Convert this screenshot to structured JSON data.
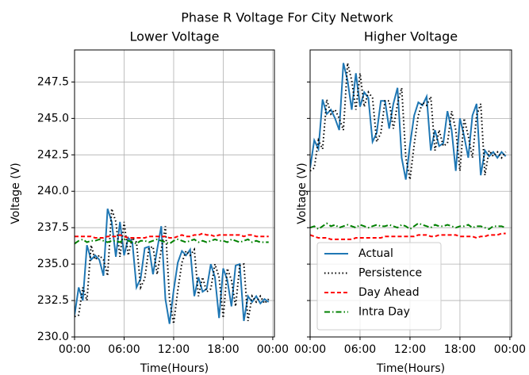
{
  "title": "Phase R Voltage For City Network",
  "chart_data": [
    {
      "type": "line",
      "title": "Lower Voltage",
      "xlabel": "Time(Hours)",
      "ylabel": "Voltage (V)",
      "x": [
        0,
        0.5,
        1,
        1.5,
        2,
        2.5,
        3,
        3.5,
        4,
        4.5,
        5,
        5.5,
        6,
        6.5,
        7,
        7.5,
        8,
        8.5,
        9,
        9.5,
        10,
        10.5,
        11,
        11.5,
        12,
        12.5,
        13,
        13.5,
        14,
        14.5,
        15,
        15.5,
        16,
        16.5,
        17,
        17.5,
        18,
        18.5,
        19,
        19.5,
        20,
        20.5,
        21,
        21.5,
        22,
        22.5,
        23,
        23.5
      ],
      "series": [
        {
          "color": "#1f77b4",
          "linestyle": "solid",
          "values": [
            231.5,
            233.4,
            232.5,
            236.3,
            235.3,
            235.6,
            235.3,
            234.2,
            238.8,
            237.9,
            235.5,
            237.9,
            235.6,
            236.8,
            236.5,
            233.4,
            234.0,
            236.1,
            236.2,
            234.3,
            236.0,
            237.6,
            232.6,
            230.9,
            233.2,
            235.1,
            235.9,
            235.6,
            236.0,
            232.8,
            234.1,
            233.1,
            233.3,
            235.0,
            234.1,
            231.3,
            234.7,
            233.9,
            232.1,
            234.9,
            235.0,
            231.1,
            232.8,
            232.4,
            232.8,
            232.3,
            232.6,
            232.4
          ]
        },
        {
          "color": "#000000",
          "linestyle": "dotted",
          "values": [
            231.4,
            231.5,
            233.4,
            232.5,
            236.3,
            235.3,
            235.6,
            235.3,
            234.2,
            238.8,
            237.9,
            235.5,
            237.9,
            235.6,
            236.8,
            236.5,
            233.4,
            234.0,
            236.1,
            236.2,
            234.3,
            236.0,
            237.6,
            232.6,
            230.9,
            233.2,
            235.1,
            235.9,
            235.6,
            236.0,
            232.8,
            234.1,
            233.1,
            233.3,
            235.0,
            234.1,
            231.3,
            234.7,
            233.9,
            232.1,
            234.9,
            235.0,
            231.1,
            232.8,
            232.4,
            232.8,
            232.3,
            232.6
          ]
        },
        {
          "color": "#ff0000",
          "linestyle": "dashed",
          "values": [
            236.9,
            236.9,
            236.9,
            236.9,
            236.9,
            236.8,
            236.8,
            236.8,
            236.9,
            236.9,
            236.9,
            237.0,
            236.9,
            236.8,
            236.8,
            236.8,
            236.8,
            236.8,
            236.9,
            236.9,
            236.9,
            236.9,
            236.9,
            236.8,
            236.8,
            236.9,
            237.0,
            236.9,
            236.9,
            237.0,
            237.0,
            237.1,
            237.0,
            237.0,
            236.9,
            237.0,
            237.0,
            237.0,
            237.0,
            237.0,
            237.0,
            236.9,
            237.0,
            237.0,
            236.9,
            236.9,
            236.9,
            236.9
          ]
        },
        {
          "color": "#008000",
          "linestyle": "dashdot",
          "values": [
            236.4,
            236.6,
            236.7,
            236.5,
            236.6,
            236.6,
            236.7,
            236.6,
            236.5,
            236.6,
            236.6,
            236.5,
            236.7,
            236.6,
            236.5,
            236.4,
            236.6,
            236.6,
            236.5,
            236.6,
            236.7,
            236.6,
            236.5,
            236.4,
            236.6,
            236.7,
            236.6,
            236.5,
            236.6,
            236.7,
            236.5,
            236.6,
            236.5,
            236.6,
            236.7,
            236.6,
            236.6,
            236.5,
            236.7,
            236.6,
            236.5,
            236.6,
            236.7,
            236.5,
            236.6,
            236.5,
            236.5,
            236.5
          ]
        }
      ],
      "xlim": [
        0,
        24.2
      ],
      "xticks": [
        {
          "value": 0,
          "label": "00:00"
        },
        {
          "value": 6,
          "label": "06:00"
        },
        {
          "value": 12,
          "label": "12:00"
        },
        {
          "value": 18,
          "label": "18:00"
        },
        {
          "value": 24,
          "label": "00:00"
        }
      ],
      "ylim": [
        230.0,
        249.7
      ],
      "yticks": [
        {
          "value": 230,
          "label": "230.0"
        },
        {
          "value": 232.5,
          "label": "232.5"
        },
        {
          "value": 235,
          "label": "235.0"
        },
        {
          "value": 237.5,
          "label": "237.5"
        },
        {
          "value": 240,
          "label": "240.0"
        },
        {
          "value": 242.5,
          "label": "242.5"
        },
        {
          "value": 245,
          "label": "245.0"
        },
        {
          "value": 247.5,
          "label": "247.5"
        }
      ],
      "show_yticklabels": true,
      "grid": true
    },
    {
      "type": "line",
      "title": "Higher Voltage",
      "xlabel": "Time(Hours)",
      "ylabel": "Voltage (V)",
      "x": [
        0,
        0.5,
        1,
        1.5,
        2,
        2.5,
        3,
        3.5,
        4,
        4.5,
        5,
        5.5,
        6,
        6.5,
        7,
        7.5,
        8,
        8.5,
        9,
        9.5,
        10,
        10.5,
        11,
        11.5,
        12,
        12.5,
        13,
        13.5,
        14,
        14.5,
        15,
        15.5,
        16,
        16.5,
        17,
        17.5,
        18,
        18.5,
        19,
        19.5,
        20,
        20.5,
        21,
        21.5,
        22,
        22.5,
        23,
        23.5
      ],
      "series": [
        {
          "name": "Actual",
          "color": "#1f77b4",
          "linestyle": "solid",
          "values": [
            241.6,
            243.5,
            242.9,
            246.3,
            245.3,
            245.6,
            245.0,
            244.2,
            248.8,
            247.6,
            245.6,
            248.1,
            245.8,
            246.8,
            246.4,
            243.4,
            244.0,
            246.2,
            246.2,
            244.3,
            246.0,
            247.1,
            242.3,
            240.8,
            243.2,
            245.2,
            246.1,
            245.9,
            246.5,
            242.8,
            244.2,
            243.1,
            243.3,
            245.5,
            244.2,
            241.4,
            245.0,
            243.8,
            242.3,
            245.2,
            246.0,
            241.1,
            242.8,
            242.4,
            242.7,
            242.3,
            242.7,
            242.4
          ]
        },
        {
          "name": "Persistence",
          "color": "#000000",
          "linestyle": "dotted",
          "values": [
            241.4,
            241.6,
            243.5,
            242.9,
            246.3,
            245.3,
            245.6,
            245.0,
            244.2,
            248.8,
            247.6,
            245.6,
            248.1,
            245.8,
            246.8,
            246.4,
            243.4,
            244.0,
            246.2,
            246.2,
            244.3,
            246.0,
            247.1,
            242.3,
            240.8,
            243.2,
            245.2,
            246.1,
            245.9,
            246.5,
            242.8,
            244.2,
            243.1,
            243.3,
            245.5,
            244.2,
            241.4,
            245.0,
            243.8,
            242.3,
            245.2,
            246.0,
            241.1,
            242.8,
            242.4,
            242.7,
            242.3,
            242.7
          ]
        },
        {
          "name": "Day Ahead",
          "color": "#ff0000",
          "linestyle": "dashed",
          "values": [
            237.0,
            236.9,
            236.8,
            236.8,
            236.8,
            236.7,
            236.7,
            236.7,
            236.7,
            236.7,
            236.7,
            236.8,
            236.8,
            236.8,
            236.8,
            236.8,
            236.8,
            236.8,
            236.9,
            236.9,
            236.9,
            236.9,
            236.9,
            236.9,
            236.9,
            236.9,
            237.0,
            237.0,
            237.0,
            236.9,
            236.9,
            237.0,
            237.0,
            237.0,
            237.0,
            237.0,
            236.9,
            236.9,
            236.9,
            236.9,
            236.8,
            236.9,
            236.9,
            237.0,
            237.0,
            237.0,
            237.1,
            237.1
          ]
        },
        {
          "name": "Intra Day",
          "color": "#008000",
          "linestyle": "dashdot",
          "values": [
            237.5,
            237.6,
            237.4,
            237.6,
            237.8,
            237.6,
            237.7,
            237.5,
            237.6,
            237.7,
            237.6,
            237.5,
            237.7,
            237.6,
            237.5,
            237.6,
            237.7,
            237.6,
            237.6,
            237.7,
            237.6,
            237.5,
            237.7,
            237.6,
            237.4,
            237.6,
            237.8,
            237.7,
            237.6,
            237.5,
            237.7,
            237.6,
            237.6,
            237.7,
            237.6,
            237.5,
            237.6,
            237.6,
            237.7,
            237.5,
            237.6,
            237.6,
            237.5,
            237.4,
            237.6,
            237.6,
            237.6,
            237.5
          ]
        }
      ],
      "xlim": [
        0,
        24.2
      ],
      "xticks": [
        {
          "value": 0,
          "label": "00:00"
        },
        {
          "value": 6,
          "label": "06:00"
        },
        {
          "value": 12,
          "label": "12:00"
        },
        {
          "value": 18,
          "label": "18:00"
        },
        {
          "value": 24,
          "label": "00:00"
        }
      ],
      "ylim": [
        230.0,
        249.7
      ],
      "yticks": [
        {
          "value": 230,
          "label": "230.0"
        },
        {
          "value": 232.5,
          "label": "232.5"
        },
        {
          "value": 235,
          "label": "235.0"
        },
        {
          "value": 237.5,
          "label": "237.5"
        },
        {
          "value": 240,
          "label": "240.0"
        },
        {
          "value": 242.5,
          "label": "242.5"
        },
        {
          "value": 245,
          "label": "245.0"
        },
        {
          "value": 247.5,
          "label": "247.5"
        }
      ],
      "show_yticklabels": false,
      "grid": true,
      "legend": "lower left"
    }
  ]
}
